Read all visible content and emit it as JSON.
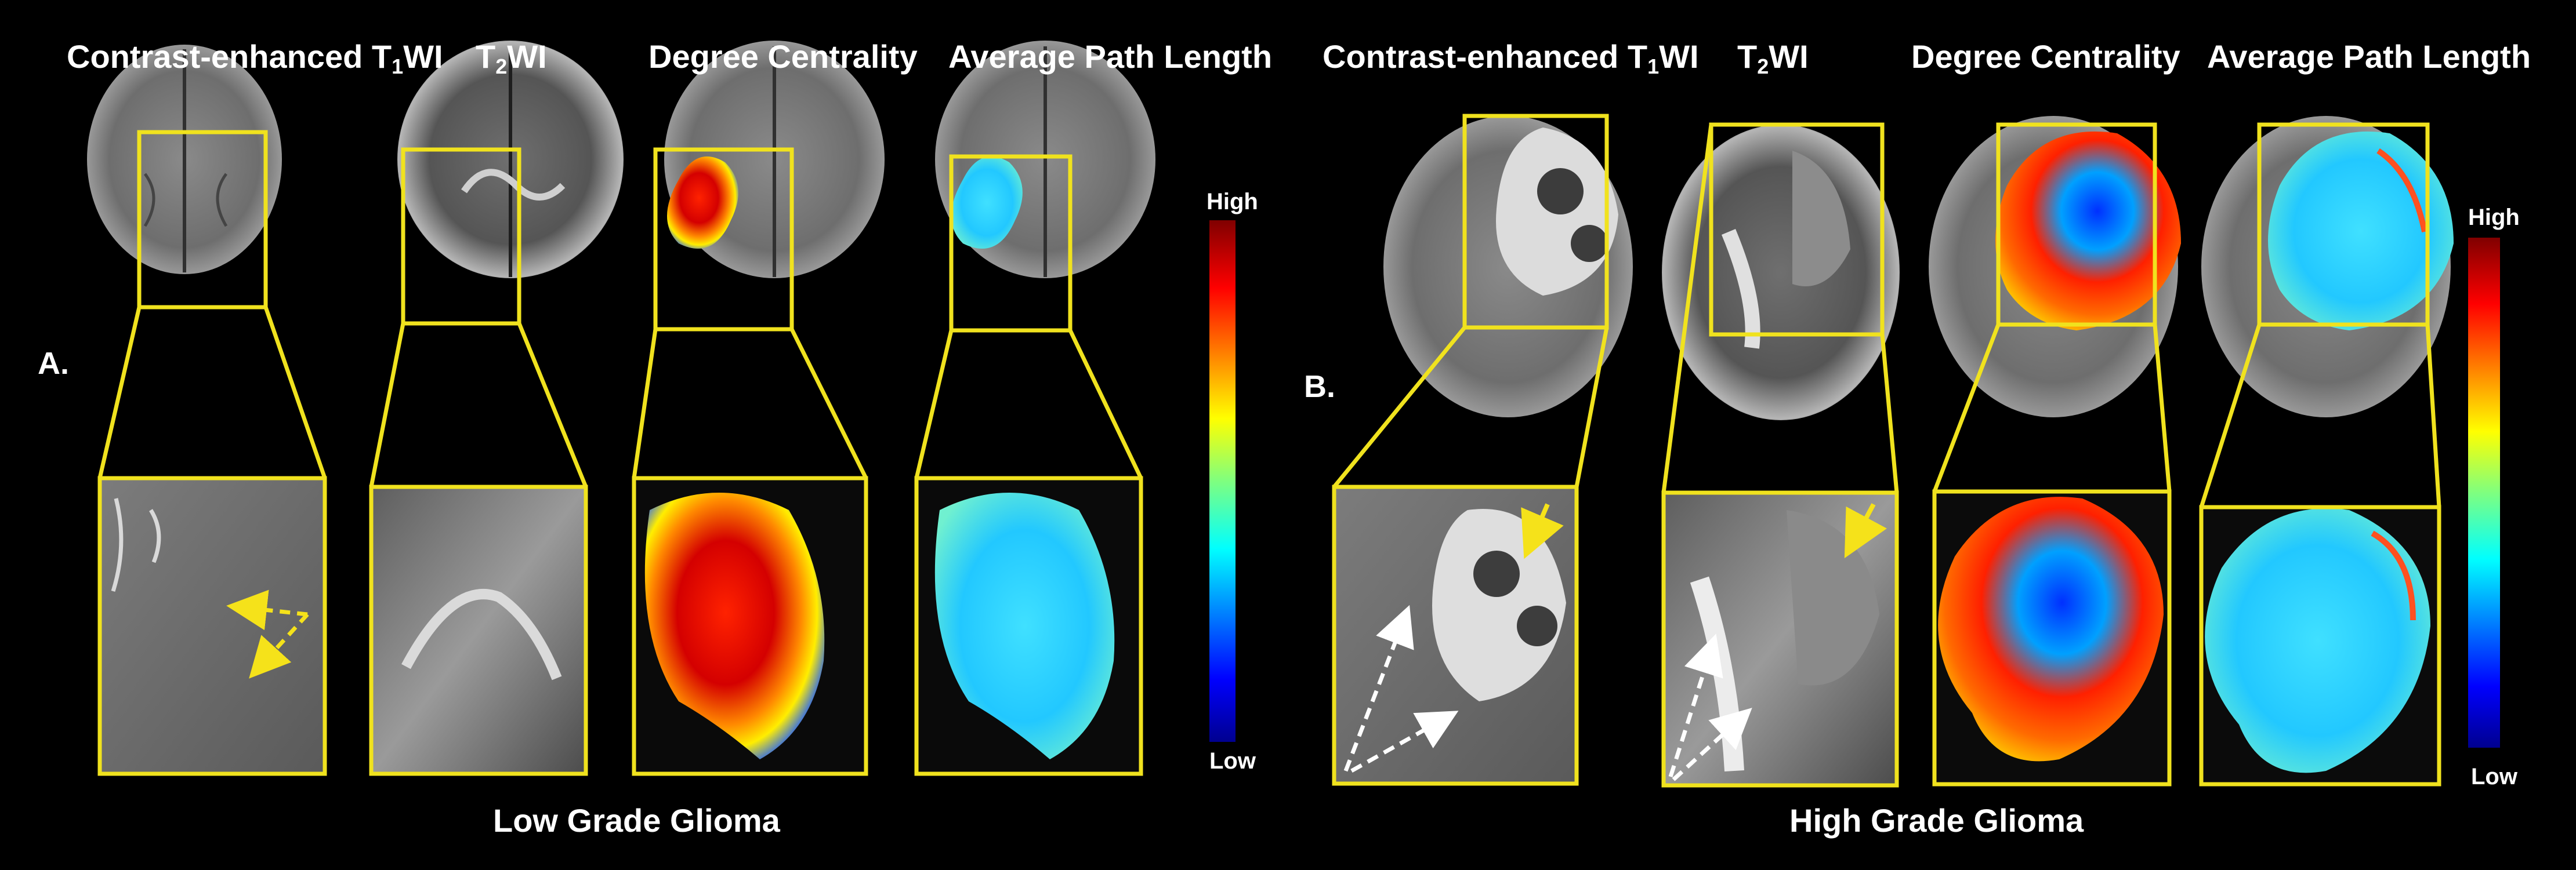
{
  "panel_a": {
    "label": "A.",
    "headers": [
      {
        "text": "Contrast-enhanced T",
        "sub": "1",
        "suffix": "WI"
      },
      {
        "text": "T",
        "sub": "2",
        "suffix": "WI"
      },
      {
        "text": "Degree Centrality"
      },
      {
        "text": "Average Path Length"
      }
    ],
    "colorbar": {
      "high": "High",
      "low": "Low"
    },
    "caption": "Low Grade Glioma"
  },
  "panel_b": {
    "label": "B.",
    "headers": [
      {
        "text": "Contrast-enhanced T",
        "sub": "1",
        "suffix": "WI"
      },
      {
        "text": "T",
        "sub": "2",
        "suffix": "WI"
      },
      {
        "text": "Degree Centrality"
      },
      {
        "text": "Average Path Length"
      }
    ],
    "colorbar": {
      "high": "High",
      "low": "Low"
    },
    "caption": "High  Grade Glioma"
  },
  "colors": {
    "background": "#000000",
    "roi_box": "#f0e21e",
    "text": "#ffffff",
    "colormap": "jet"
  }
}
